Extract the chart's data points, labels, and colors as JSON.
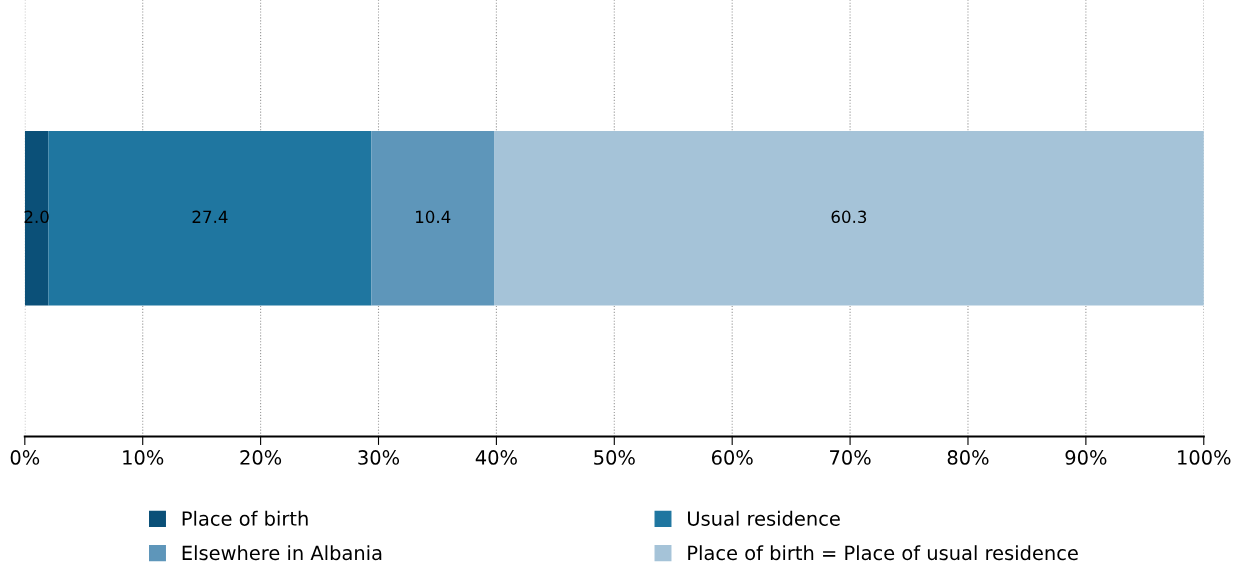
{
  "chart_data": {
    "type": "bar",
    "orientation": "horizontal",
    "stacked": true,
    "categories": [
      null
    ],
    "series": [
      {
        "name": "Place of birth",
        "color": "#0b5078",
        "values": [
          2.0
        ],
        "value_labels": [
          "2.0"
        ]
      },
      {
        "name": "Usual residence",
        "color": "#1f76a0",
        "values": [
          27.4
        ],
        "value_labels": [
          "27.4"
        ]
      },
      {
        "name": "Elsewhere in Albania",
        "color": "#5e96ba",
        "values": [
          10.4
        ],
        "value_labels": [
          "10.4"
        ]
      },
      {
        "name": "Place of birth = Place of usual residence",
        "color": "#a5c3d8",
        "values": [
          60.3
        ],
        "value_labels": [
          "60.3"
        ]
      }
    ],
    "xlim": [
      0,
      100
    ],
    "xticks": [
      {
        "value": 0,
        "label": "0%"
      },
      {
        "value": 10,
        "label": "10%"
      },
      {
        "value": 20,
        "label": "20%"
      },
      {
        "value": 30,
        "label": "30%"
      },
      {
        "value": 40,
        "label": "40%"
      },
      {
        "value": 50,
        "label": "50%"
      },
      {
        "value": 60,
        "label": "60%"
      },
      {
        "value": 70,
        "label": "70%"
      },
      {
        "value": 80,
        "label": "80%"
      },
      {
        "value": 90,
        "label": "90%"
      },
      {
        "value": 100,
        "label": "100%"
      }
    ],
    "grid": "x",
    "legend": "bottom"
  }
}
